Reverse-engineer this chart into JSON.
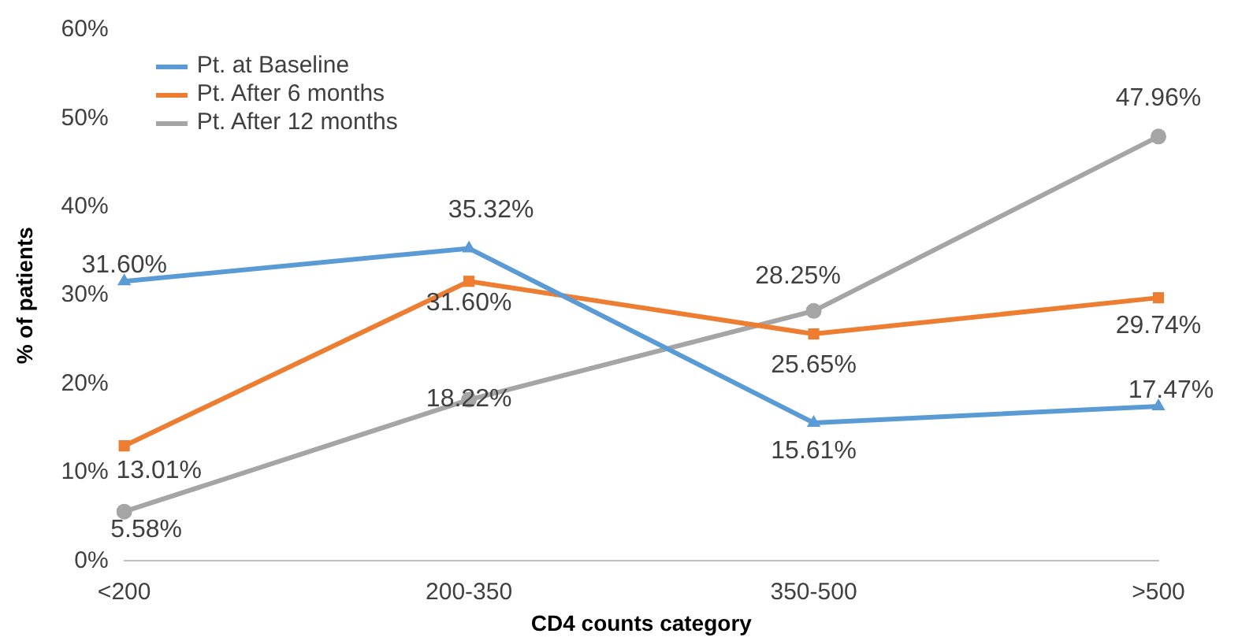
{
  "chart_data": {
    "type": "line",
    "xlabel": "CD4 counts category",
    "ylabel": "% of patients",
    "categories": [
      "<200",
      "200-350",
      "350-500",
      ">500"
    ],
    "ylim": [
      0,
      60
    ],
    "yticks": [
      {
        "value": 0,
        "label": "0%"
      },
      {
        "value": 10,
        "label": "10%"
      },
      {
        "value": 20,
        "label": "20%"
      },
      {
        "value": 30,
        "label": "30%"
      },
      {
        "value": 40,
        "label": "40%"
      },
      {
        "value": 50,
        "label": "50%"
      },
      {
        "value": 60,
        "label": "60%"
      }
    ],
    "grid": false,
    "legend": "top left",
    "line_style": "solid",
    "series": [
      {
        "name": "Pt. at Baseline",
        "color": "#5b9bd5",
        "marker": "triangle",
        "values": [
          31.6,
          35.32,
          15.61,
          17.47
        ],
        "value_labels": [
          "31.60%",
          "35.32%",
          "15.61%",
          "17.47%"
        ]
      },
      {
        "name": "Pt. After 6 months",
        "color": "#ed7d31",
        "marker": "square",
        "values": [
          13.01,
          31.6,
          25.65,
          29.74
        ],
        "value_labels": [
          "13.01%",
          "31.60%",
          "25.65%",
          "29.74%"
        ]
      },
      {
        "name": "Pt. After 12 months",
        "color": "#a5a5a5",
        "marker": "circle",
        "values": [
          5.58,
          18.22,
          28.25,
          47.96
        ],
        "value_labels": [
          "5.58%",
          "18.22%",
          "28.25%",
          "47.96%"
        ]
      }
    ]
  }
}
